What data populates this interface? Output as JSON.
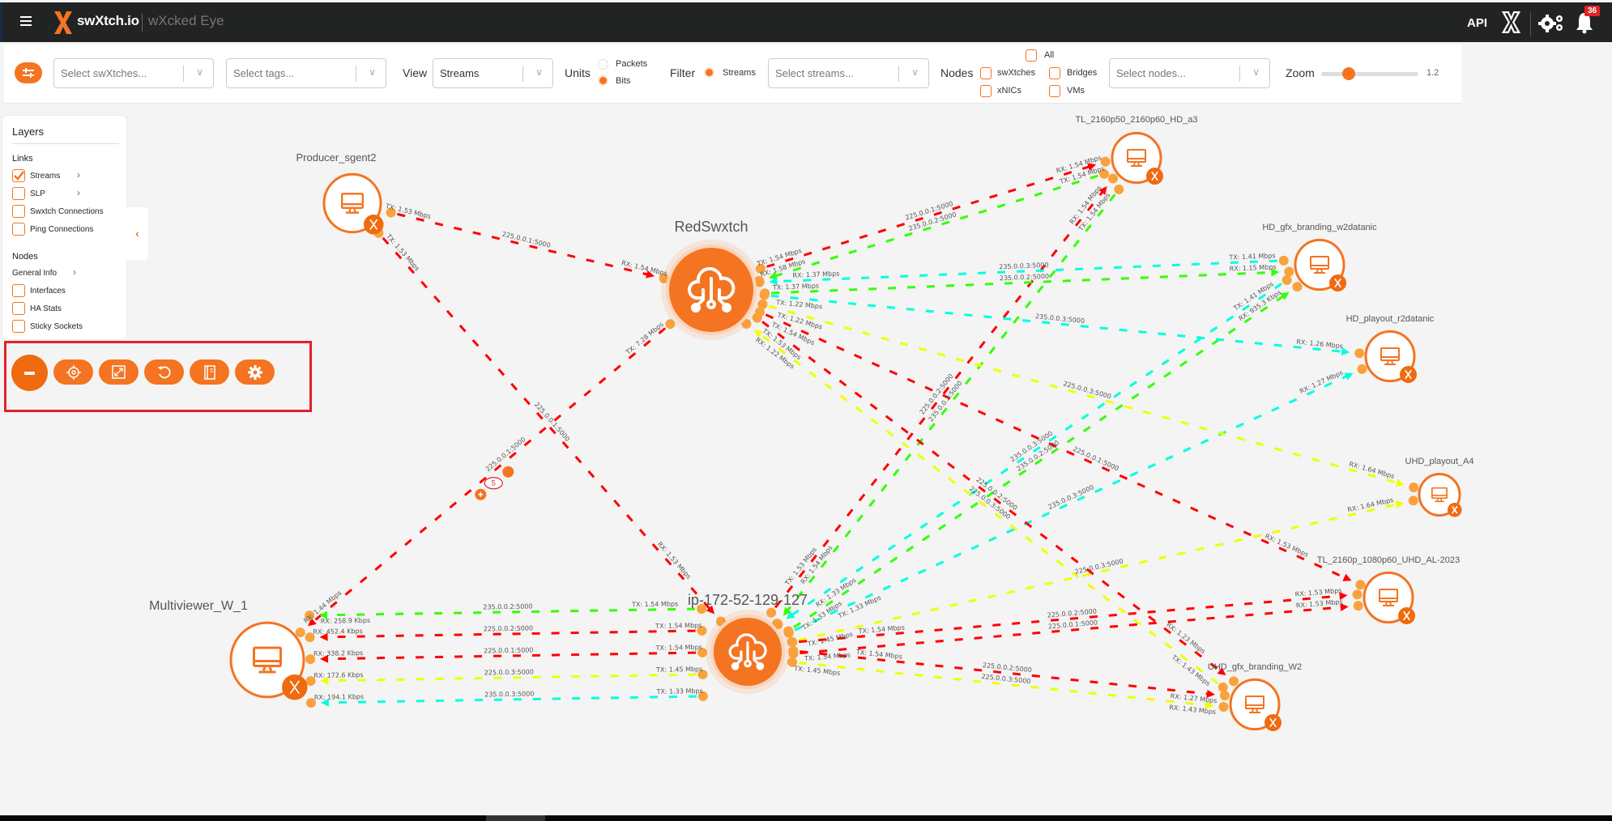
{
  "header": {
    "brand": "swXtch.io",
    "product": "wXcked Eye",
    "api_label": "API",
    "notification_count": "36",
    "icons": [
      "menu-icon",
      "swxtch-logo-icon",
      "gears-icon",
      "bell-icon"
    ]
  },
  "toolbar": {
    "swxtches_placeholder": "Select swXtches...",
    "tags_placeholder": "Select tags...",
    "view_label": "View",
    "view_value": "Streams",
    "units_label": "Units",
    "units_options": [
      "Packets",
      "Bits"
    ],
    "units_selected": "Bits",
    "filter_label": "Filter",
    "filter_option": "Streams",
    "streams_placeholder": "Select streams...",
    "nodes_label": "Nodes",
    "node_types": {
      "all": "All",
      "swxtches": "swXtches",
      "bridges": "Bridges",
      "xnics": "xNICs",
      "vms": "VMs"
    },
    "nodes_placeholder": "Select nodes...",
    "zoom_label": "Zoom",
    "zoom_value": "1.2"
  },
  "layers": {
    "title": "Layers",
    "links_heading": "Links",
    "links": [
      {
        "label": "Streams",
        "checked": true,
        "expandable": true
      },
      {
        "label": "SLP",
        "checked": false,
        "expandable": true
      },
      {
        "label": "Swxtch Connections",
        "checked": false,
        "expandable": false
      },
      {
        "label": "Ping Connections",
        "checked": false,
        "expandable": false
      }
    ],
    "nodes_heading": "Nodes",
    "general_info": "General Info",
    "nodes": [
      {
        "label": "Interfaces",
        "checked": false
      },
      {
        "label": "HA Stats",
        "checked": false
      },
      {
        "label": "Sticky Sockets",
        "checked": false
      }
    ]
  },
  "controls": [
    "minus-icon",
    "locate-icon",
    "fit-screen-icon",
    "reset-icon",
    "legend-book-icon",
    "settings-gear-icon"
  ],
  "colors": {
    "accent": "#f47421",
    "red": "#ff0000",
    "green": "#33ff00",
    "cyan": "#00ffdd",
    "yellow": "#eeff00",
    "endpoint": "#f9a23c"
  },
  "graph": {
    "nodes": [
      {
        "id": "producer",
        "name": "Producer_sgent2",
        "type": "vm"
      },
      {
        "id": "red",
        "name": "RedSwxtch",
        "type": "swxtch"
      },
      {
        "id": "ip",
        "name": "ip-172-52-129-127",
        "type": "swxtch"
      },
      {
        "id": "mv",
        "name": "Multiviewer_W_1",
        "type": "vm"
      },
      {
        "id": "tla3",
        "name": "TL_2160p50_2160p60_HD_a3",
        "type": "vm"
      },
      {
        "id": "gfxw2d",
        "name": "HD_gfx_branding_w2datanic",
        "type": "vm"
      },
      {
        "id": "playr2",
        "name": "HD_playout_r2datanic",
        "type": "vm"
      },
      {
        "id": "uhda4",
        "name": "UHD_playout_A4",
        "type": "vm"
      },
      {
        "id": "tlal",
        "name": "TL_2160p_1080p60_UHD_AL-2023",
        "type": "vm"
      },
      {
        "id": "uhdgfx",
        "name": "UHD_gfx_branding_W2",
        "type": "vm"
      }
    ],
    "links": [
      {
        "from": "producer",
        "to": "red",
        "color": "red",
        "stream": "225.0.0.1:5000",
        "tx": "TX: 1.53 Mbps",
        "rx": "RX: 1.54 Mbps"
      },
      {
        "from": "producer",
        "to": "ip",
        "color": "red",
        "stream": "225.0.0.1:5000",
        "tx": "TX: 1.53 Mbps",
        "rx": "RX: 1.53 Mbps"
      },
      {
        "from": "red",
        "to": "mv",
        "color": "red",
        "stream": "225.0.0.1:5000",
        "tx": "TX: 7.28 Mbps",
        "rx": "RX: 1.44 Mbps",
        "badge": "5"
      },
      {
        "from": "ip",
        "to": "mv",
        "color": "cyan",
        "stream": "235.0.0.3:5000",
        "tx": "TX: 1.33 Mbps",
        "rx": "RX: 194.1 Kbps"
      },
      {
        "from": "ip",
        "to": "mv",
        "color": "yellow",
        "stream": "225.0.0.3:5000",
        "tx": "TX: 1.45 Mbps",
        "rx": "RX: 172.6 Kbps"
      },
      {
        "from": "ip",
        "to": "mv",
        "color": "red",
        "stream": "225.0.0.1:5000",
        "tx": "TX: 1.54 Mbps",
        "rx": "RX: 338.2 Kbps"
      },
      {
        "from": "ip",
        "to": "mv",
        "color": "red",
        "stream": "225.0.0.2:5000",
        "tx": "TX: 1.54 Mbps",
        "rx": "RX: 452.4 Kbps"
      },
      {
        "from": "ip",
        "to": "mv",
        "color": "green",
        "stream": "235.0.0.2:5000",
        "tx": "TX: 1.54 Mbps",
        "rx": "RX: 258.9 Kbps"
      },
      {
        "from": "red",
        "to": "tla3",
        "color": "red",
        "stream": "225.0.0.1:5000",
        "tx": "TX: 1.54 Mbps",
        "rx": "RX: 1.54 Mbps"
      },
      {
        "from": "tla3",
        "to": "red",
        "color": "green",
        "stream": "235.0.0.2:5000",
        "tx": "TX: 1.54 Mbps",
        "rx": "RX: 1.58 Mbps"
      },
      {
        "from": "ip",
        "to": "tla3",
        "color": "red",
        "stream": "225.0.0.2:5000",
        "tx": "TX: 1.53 Mbps",
        "rx": "RX: 1.54 Mbps"
      },
      {
        "from": "tla3",
        "to": "ip",
        "color": "green",
        "stream": "235.0.0.2:5000",
        "tx": "TX: 1.54 Mbps",
        "rx": "RX: 1.54 Mbps"
      },
      {
        "from": "red",
        "to": "gfxw2d",
        "color": "green",
        "stream": "235.0.0.2:5000",
        "tx": "TX: 1.37 Mbps",
        "rx": "RX: 1.15 Mbps"
      },
      {
        "from": "gfxw2d",
        "to": "red",
        "color": "cyan",
        "stream": "235.0.0.3:5000",
        "tx": "TX: 1.41 Mbps",
        "rx": "RX: 1.37 Mbps"
      },
      {
        "from": "ip",
        "to": "gfxw2d",
        "color": "green",
        "stream": "235.0.0.2:5000",
        "tx": "TX: 1.33 Mbps",
        "rx": "RX: 935.3 Kbps"
      },
      {
        "from": "gfxw2d",
        "to": "ip",
        "color": "cyan",
        "stream": "235.0.0.3:5000",
        "tx": "TX: 1.41 Mbps",
        "rx": "RX: 1.33 Mbps"
      },
      {
        "from": "red",
        "to": "playr2",
        "color": "cyan",
        "stream": "235.0.0.3:5000",
        "tx": "TX: 1.22 Mbps",
        "rx": "RX: 1.26 Mbps"
      },
      {
        "from": "ip",
        "to": "playr2",
        "color": "cyan",
        "stream": "235.0.0.3:5000",
        "tx": "TX: 1.33 Mbps",
        "rx": "RX: 1.27 Mbps"
      },
      {
        "from": "red",
        "to": "uhda4",
        "color": "yellow",
        "stream": "225.0.0.3:5000",
        "tx": "TX: 1.22 Mbps",
        "rx": "RX: 1.64 Mbps"
      },
      {
        "from": "ip",
        "to": "uhda4",
        "color": "yellow",
        "stream": "225.0.0.3:5000",
        "tx": "TX: 1.45 Mbps",
        "rx": "RX: 1.64 Mbps"
      },
      {
        "from": "red",
        "to": "tlal",
        "color": "red",
        "stream": "225.0.0.1:5000",
        "tx": "TX: 1.54 Mbps",
        "rx": "RX: 1.53 Mbps"
      },
      {
        "from": "ip",
        "to": "tlal",
        "color": "red",
        "stream": "225.0.0.2:5000",
        "tx": "TX: 1.54 Mbps",
        "rx": "RX: 1.53 Mbps"
      },
      {
        "from": "ip",
        "to": "tlal",
        "color": "red",
        "stream": "225.0.0.1:5000",
        "tx": "TX: 1.54 Mbps",
        "rx": "RX: 1.53 Mbps"
      },
      {
        "from": "red",
        "to": "uhdgfx",
        "color": "red",
        "stream": "225.0.0.2:5000",
        "tx": "TX: 1.53 Mbps",
        "rx": "RX: 1.23 Mbps"
      },
      {
        "from": "uhdgfx",
        "to": "red",
        "color": "yellow",
        "stream": "225.0.0.3:5000",
        "tx": "TX: 1.43 Mbps",
        "rx": "RX: 1.22 Mbps"
      },
      {
        "from": "ip",
        "to": "uhdgfx",
        "color": "red",
        "stream": "225.0.0.2:5000",
        "tx": "TX: 1.54 Mbps",
        "rx": "RX: 1.27 Mbps"
      },
      {
        "from": "ip",
        "to": "uhdgfx",
        "color": "yellow",
        "stream": "225.0.0.3:5000",
        "tx": "TX: 1.45 Mbps",
        "rx": "RX: 1.43 Mbps"
      }
    ]
  }
}
